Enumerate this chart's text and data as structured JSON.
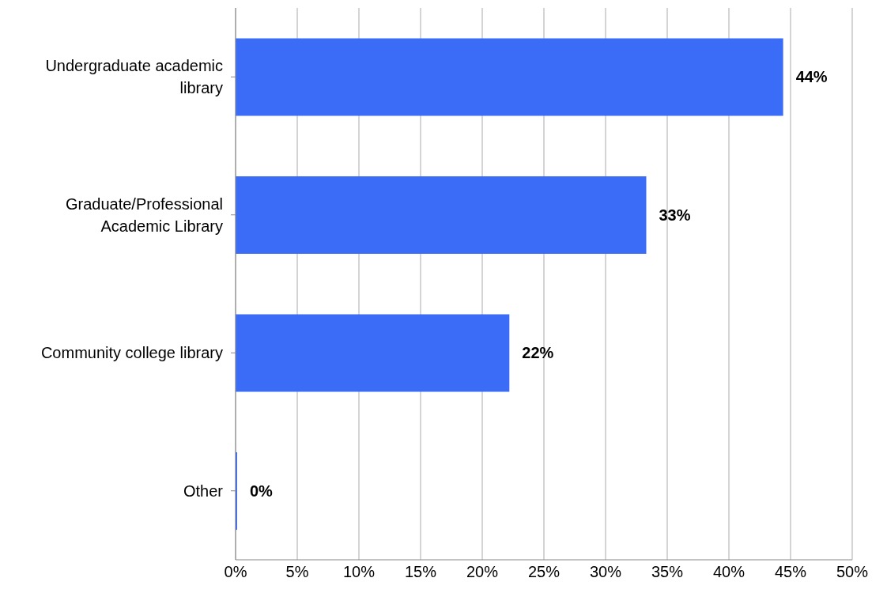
{
  "chart_data": {
    "type": "bar",
    "orientation": "horizontal",
    "categories": [
      "Undergraduate academic library",
      "Graduate/Professional Academic Library",
      "Community college library",
      "Other"
    ],
    "values": [
      44.4,
      33.3,
      22.2,
      0
    ],
    "value_labels": [
      "44%",
      "33%",
      "22%",
      "0%"
    ],
    "color": "#3b6cf8",
    "xlim": [
      0,
      50
    ],
    "xticks": [
      {
        "value": 0,
        "label": "0%"
      },
      {
        "value": 5,
        "label": "5%"
      },
      {
        "value": 10,
        "label": "10%"
      },
      {
        "value": 15,
        "label": "15%"
      },
      {
        "value": 20,
        "label": "20%"
      },
      {
        "value": 25,
        "label": "25%"
      },
      {
        "value": 30,
        "label": "30%"
      },
      {
        "value": 35,
        "label": "35%"
      },
      {
        "value": 40,
        "label": "40%"
      },
      {
        "value": 45,
        "label": "45%"
      },
      {
        "value": 50,
        "label": "50%"
      }
    ],
    "grid": "x",
    "legend": false
  }
}
